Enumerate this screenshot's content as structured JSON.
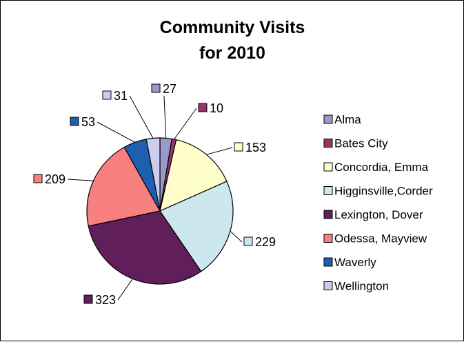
{
  "chart_data": {
    "type": "pie",
    "title": [
      "Community Visits",
      "for 2010"
    ],
    "slices": [
      {
        "label": "Alma",
        "value": 27,
        "color": "#9999cc"
      },
      {
        "label": "Bates City",
        "value": 10,
        "color": "#993366"
      },
      {
        "label": "Concordia, Emma",
        "value": 153,
        "color": "#ffffcc"
      },
      {
        "label": "Higginsville,Corder",
        "value": 229,
        "color": "#cce8ee"
      },
      {
        "label": "Lexington, Dover",
        "value": 323,
        "color": "#601e5a"
      },
      {
        "label": "Odessa, Mayview",
        "value": 209,
        "color": "#f88080"
      },
      {
        "label": "Waverly",
        "value": 53,
        "color": "#1f5fb0"
      },
      {
        "label": "Wellington",
        "value": 31,
        "color": "#ccccee"
      }
    ],
    "legend_position": "right"
  }
}
